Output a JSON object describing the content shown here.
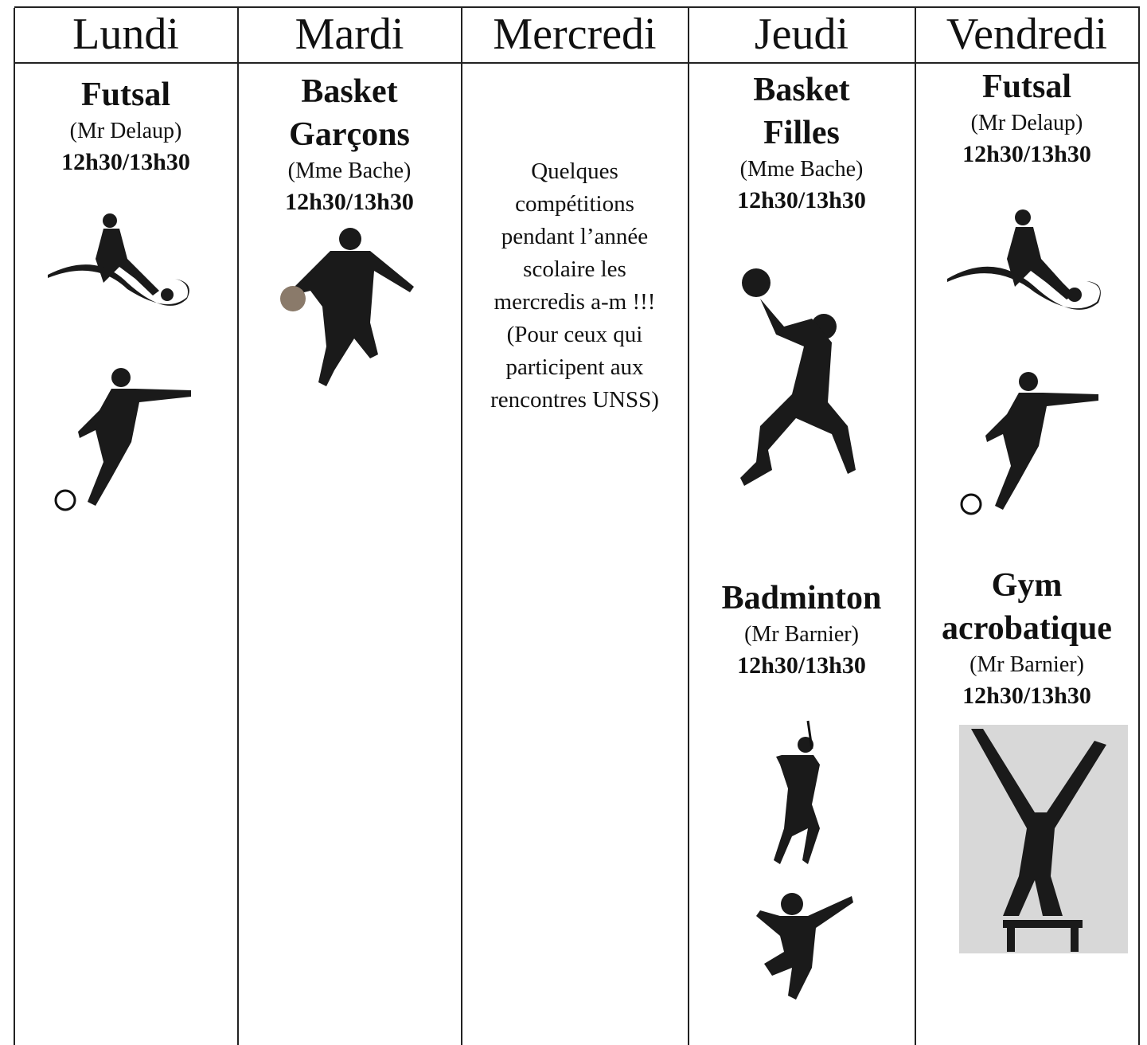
{
  "table": {
    "headers": [
      "Lundi",
      "Mardi",
      "Mercredi",
      "Jeudi",
      "Vendredi"
    ],
    "columns": [
      {
        "activities": [
          {
            "title": "Futsal",
            "teacher": "(Mr Delaup)",
            "time": "12h30/13h30"
          }
        ]
      },
      {
        "activities": [
          {
            "title": "Basket Garçons",
            "teacher": "(Mme Bache)",
            "time": "12h30/13h30"
          }
        ]
      },
      {
        "note": "Quelques compétitions pendant l’année scolaire les mercredis a-m !!! (Pour ceux qui participent aux rencontres UNSS)"
      },
      {
        "activities": [
          {
            "title": "Basket Filles",
            "teacher": "(Mme Bache)",
            "time": "12h30/13h30"
          },
          {
            "title": "Badminton",
            "teacher": "(Mr Barnier)",
            "time": "12h30/13h30"
          }
        ]
      },
      {
        "activities": [
          {
            "title": "Futsal",
            "teacher": "(Mr Delaup)",
            "time": "12h30/13h30"
          },
          {
            "title": "Gym acrobatique",
            "teacher": "(Mr Barnier)",
            "time": "12h30/13h30"
          }
        ]
      }
    ]
  }
}
